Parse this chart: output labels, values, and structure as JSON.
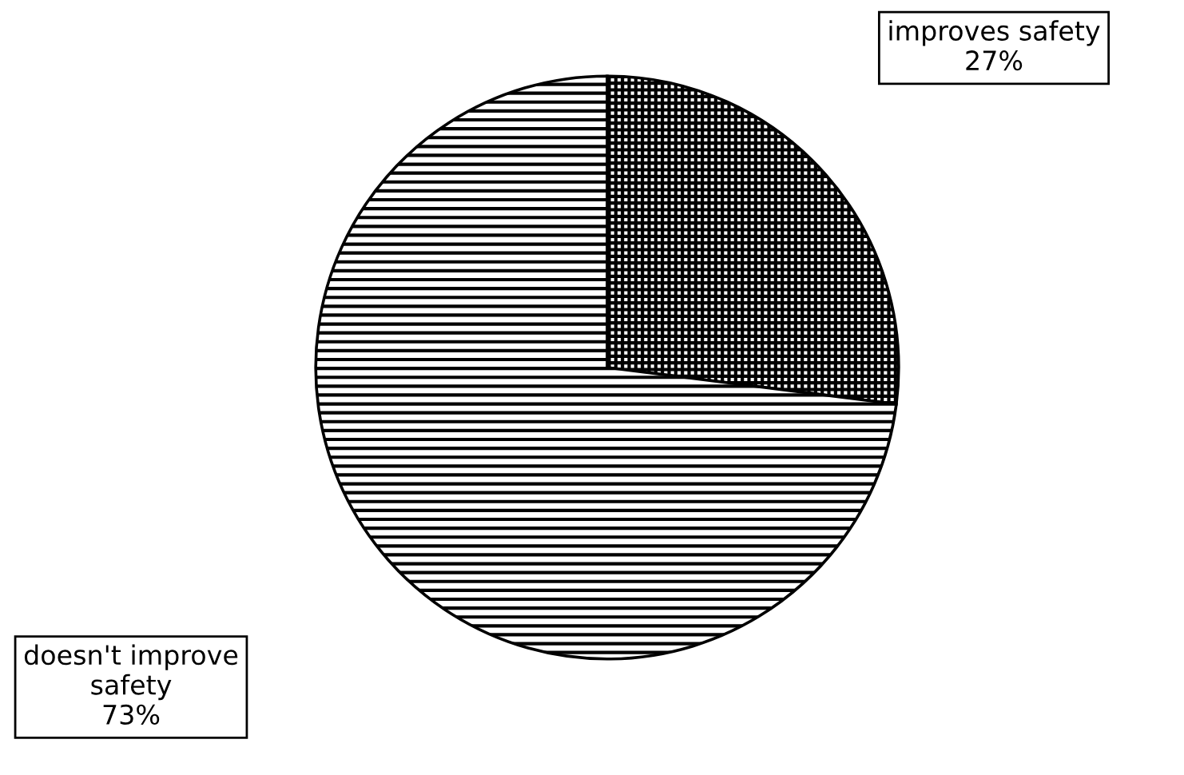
{
  "chart_data": {
    "type": "pie",
    "categories": [
      "improves safety",
      "doesn't improve safety"
    ],
    "values": [
      27,
      73
    ],
    "colors": [
      "#ffffff",
      "#ffffff"
    ],
    "value_labels": [
      "27%",
      "73%"
    ],
    "legend": false
  }
}
